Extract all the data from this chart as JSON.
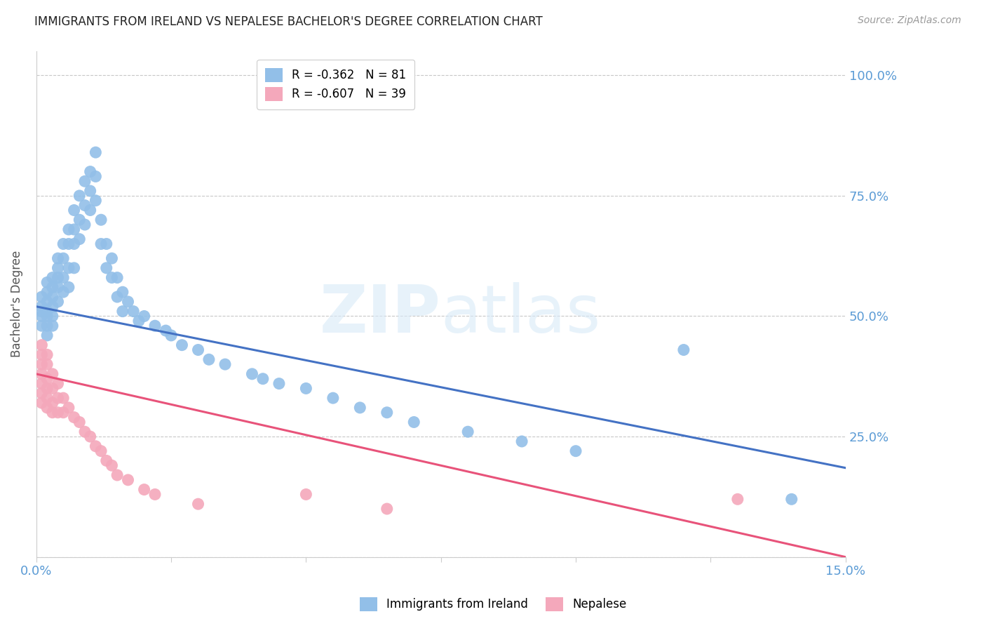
{
  "title": "IMMIGRANTS FROM IRELAND VS NEPALESE BACHELOR'S DEGREE CORRELATION CHART",
  "source": "Source: ZipAtlas.com",
  "ylabel": "Bachelor's Degree",
  "legend_blue_label": "Immigrants from Ireland",
  "legend_pink_label": "Nepalese",
  "blue_R": "-0.362",
  "blue_N": "81",
  "pink_R": "-0.607",
  "pink_N": "39",
  "blue_color": "#92bfe8",
  "pink_color": "#f4a8bb",
  "blue_line_color": "#4472c4",
  "pink_line_color": "#e8537a",
  "blue_scatter": [
    [
      0.001,
      0.54
    ],
    [
      0.001,
      0.52
    ],
    [
      0.001,
      0.51
    ],
    [
      0.001,
      0.5
    ],
    [
      0.001,
      0.48
    ],
    [
      0.002,
      0.57
    ],
    [
      0.002,
      0.55
    ],
    [
      0.002,
      0.53
    ],
    [
      0.002,
      0.51
    ],
    [
      0.002,
      0.5
    ],
    [
      0.002,
      0.48
    ],
    [
      0.002,
      0.46
    ],
    [
      0.003,
      0.58
    ],
    [
      0.003,
      0.56
    ],
    [
      0.003,
      0.54
    ],
    [
      0.003,
      0.52
    ],
    [
      0.003,
      0.5
    ],
    [
      0.003,
      0.48
    ],
    [
      0.004,
      0.62
    ],
    [
      0.004,
      0.6
    ],
    [
      0.004,
      0.58
    ],
    [
      0.004,
      0.56
    ],
    [
      0.004,
      0.53
    ],
    [
      0.005,
      0.65
    ],
    [
      0.005,
      0.62
    ],
    [
      0.005,
      0.58
    ],
    [
      0.005,
      0.55
    ],
    [
      0.006,
      0.68
    ],
    [
      0.006,
      0.65
    ],
    [
      0.006,
      0.6
    ],
    [
      0.006,
      0.56
    ],
    [
      0.007,
      0.72
    ],
    [
      0.007,
      0.68
    ],
    [
      0.007,
      0.65
    ],
    [
      0.007,
      0.6
    ],
    [
      0.008,
      0.75
    ],
    [
      0.008,
      0.7
    ],
    [
      0.008,
      0.66
    ],
    [
      0.009,
      0.78
    ],
    [
      0.009,
      0.73
    ],
    [
      0.009,
      0.69
    ],
    [
      0.01,
      0.8
    ],
    [
      0.01,
      0.76
    ],
    [
      0.01,
      0.72
    ],
    [
      0.011,
      0.84
    ],
    [
      0.011,
      0.79
    ],
    [
      0.011,
      0.74
    ],
    [
      0.012,
      0.7
    ],
    [
      0.012,
      0.65
    ],
    [
      0.013,
      0.65
    ],
    [
      0.013,
      0.6
    ],
    [
      0.014,
      0.62
    ],
    [
      0.014,
      0.58
    ],
    [
      0.015,
      0.58
    ],
    [
      0.015,
      0.54
    ],
    [
      0.016,
      0.55
    ],
    [
      0.016,
      0.51
    ],
    [
      0.017,
      0.53
    ],
    [
      0.018,
      0.51
    ],
    [
      0.019,
      0.49
    ],
    [
      0.02,
      0.5
    ],
    [
      0.022,
      0.48
    ],
    [
      0.024,
      0.47
    ],
    [
      0.025,
      0.46
    ],
    [
      0.027,
      0.44
    ],
    [
      0.03,
      0.43
    ],
    [
      0.032,
      0.41
    ],
    [
      0.035,
      0.4
    ],
    [
      0.04,
      0.38
    ],
    [
      0.042,
      0.37
    ],
    [
      0.045,
      0.36
    ],
    [
      0.05,
      0.35
    ],
    [
      0.055,
      0.33
    ],
    [
      0.06,
      0.31
    ],
    [
      0.065,
      0.3
    ],
    [
      0.07,
      0.28
    ],
    [
      0.08,
      0.26
    ],
    [
      0.09,
      0.24
    ],
    [
      0.1,
      0.22
    ],
    [
      0.12,
      0.43
    ],
    [
      0.14,
      0.12
    ]
  ],
  "pink_scatter": [
    [
      0.001,
      0.44
    ],
    [
      0.001,
      0.42
    ],
    [
      0.001,
      0.4
    ],
    [
      0.001,
      0.38
    ],
    [
      0.001,
      0.36
    ],
    [
      0.001,
      0.34
    ],
    [
      0.001,
      0.32
    ],
    [
      0.002,
      0.42
    ],
    [
      0.002,
      0.4
    ],
    [
      0.002,
      0.37
    ],
    [
      0.002,
      0.35
    ],
    [
      0.002,
      0.33
    ],
    [
      0.002,
      0.31
    ],
    [
      0.003,
      0.38
    ],
    [
      0.003,
      0.35
    ],
    [
      0.003,
      0.32
    ],
    [
      0.003,
      0.3
    ],
    [
      0.004,
      0.36
    ],
    [
      0.004,
      0.33
    ],
    [
      0.004,
      0.3
    ],
    [
      0.005,
      0.33
    ],
    [
      0.005,
      0.3
    ],
    [
      0.006,
      0.31
    ],
    [
      0.007,
      0.29
    ],
    [
      0.008,
      0.28
    ],
    [
      0.009,
      0.26
    ],
    [
      0.01,
      0.25
    ],
    [
      0.011,
      0.23
    ],
    [
      0.012,
      0.22
    ],
    [
      0.013,
      0.2
    ],
    [
      0.014,
      0.19
    ],
    [
      0.015,
      0.17
    ],
    [
      0.017,
      0.16
    ],
    [
      0.02,
      0.14
    ],
    [
      0.022,
      0.13
    ],
    [
      0.03,
      0.11
    ],
    [
      0.05,
      0.13
    ],
    [
      0.065,
      0.1
    ],
    [
      0.13,
      0.12
    ]
  ],
  "blue_line": [
    0.0,
    0.15,
    0.52,
    0.185
  ],
  "pink_line": [
    0.0,
    0.15,
    0.38,
    0.0
  ],
  "xlim": [
    0.0,
    0.15
  ],
  "ylim": [
    0.0,
    1.05
  ],
  "background_color": "#ffffff",
  "grid_color": "#c8c8c8"
}
